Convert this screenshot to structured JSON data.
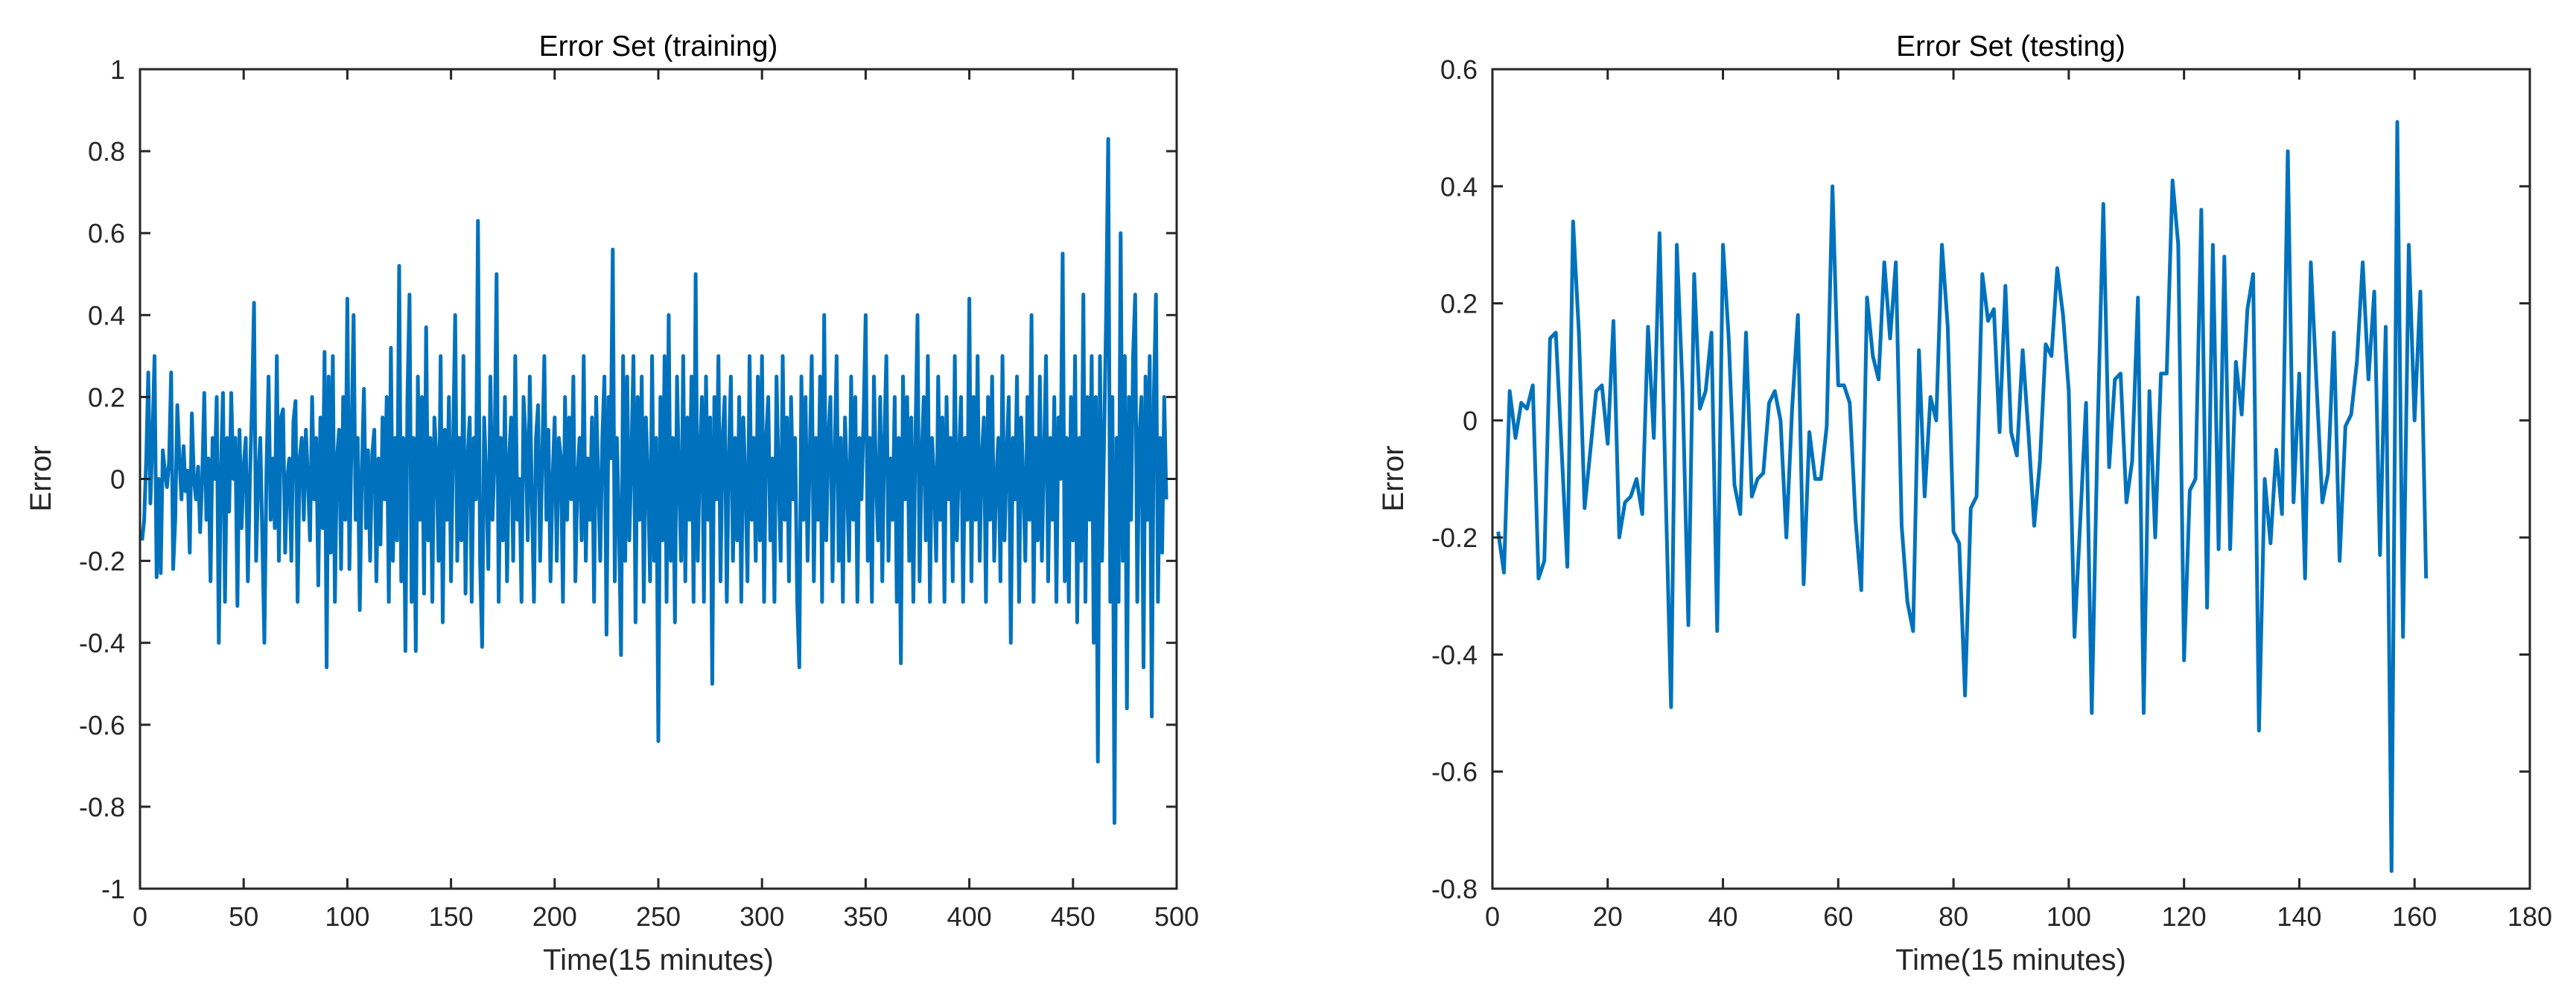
{
  "chart_data": [
    {
      "type": "line",
      "title": "Error Set (training)",
      "xlabel": "Time(15 minutes)",
      "ylabel": "Error",
      "xlim": [
        0,
        500
      ],
      "ylim": [
        -1,
        1
      ],
      "xticks": [
        "0",
        "50",
        "100",
        "150",
        "200",
        "250",
        "300",
        "350",
        "400",
        "450",
        "500"
      ],
      "yticks": [
        "-1",
        "-0.8",
        "-0.6",
        "-0.4",
        "-0.2",
        "0",
        "0.2",
        "0.4",
        "0.6",
        "0.8",
        "1"
      ],
      "grid": false,
      "color": "#0072BD",
      "x_start": 1,
      "x_step": 1,
      "values": [
        -0.15,
        -0.1,
        0.05,
        0.26,
        -0.06,
        0.1,
        0.3,
        -0.24,
        0.0,
        -0.23,
        0.07,
        0.02,
        -0.02,
        0.04,
        0.26,
        -0.22,
        -0.1,
        0.18,
        0.05,
        -0.05,
        0.08,
        -0.03,
        0.02,
        -0.18,
        0.16,
        0.0,
        -0.05,
        0.03,
        -0.13,
        0.0,
        0.21,
        -0.1,
        0.05,
        -0.25,
        0.1,
        0.0,
        0.2,
        -0.4,
        0.02,
        0.21,
        -0.3,
        0.1,
        -0.08,
        0.21,
        0.0,
        0.1,
        -0.31,
        0.12,
        -0.12,
        0.03,
        0.1,
        -0.25,
        0.0,
        0.18,
        0.43,
        -0.2,
        0.0,
        0.1,
        -0.15,
        -0.4,
        0.02,
        0.25,
        -0.1,
        0.05,
        -0.12,
        0.3,
        -0.2,
        0.15,
        0.17,
        -0.18,
        0.0,
        0.05,
        -0.2,
        0.14,
        0.19,
        -0.3,
        0.05,
        0.1,
        -0.1,
        0.12,
        0.0,
        -0.15,
        0.2,
        -0.05,
        0.1,
        -0.26,
        0.15,
        -0.12,
        0.31,
        -0.46,
        0.25,
        -0.18,
        0.3,
        -0.3,
        0.05,
        0.12,
        -0.22,
        0.2,
        -0.1,
        0.44,
        -0.22,
        0.1,
        0.4,
        -0.1,
        0.1,
        -0.32,
        0.02,
        0.22,
        -0.12,
        0.07,
        -0.2,
        0.06,
        0.12,
        -0.25,
        0.05,
        -0.16,
        0.15,
        -0.05,
        0.2,
        -0.3,
        0.32,
        -0.2,
        0.1,
        -0.15,
        0.52,
        -0.25,
        0.1,
        -0.42,
        0.2,
        0.45,
        -0.3,
        0.1,
        -0.42,
        0.25,
        -0.1,
        0.2,
        -0.28,
        0.37,
        -0.15,
        0.1,
        -0.3,
        0.15,
        0.05,
        -0.2,
        0.3,
        -0.35,
        0.12,
        -0.1,
        0.2,
        -0.25,
        0.08,
        0.4,
        -0.2,
        0.1,
        -0.15,
        0.3,
        -0.28,
        0.05,
        0.15,
        -0.3,
        0.1,
        -0.05,
        0.63,
        -0.2,
        -0.41,
        0.15,
        0.0,
        -0.22,
        0.25,
        -0.1,
        0.05,
        0.5,
        -0.3,
        0.1,
        -0.15,
        0.2,
        -0.25,
        0.05,
        0.15,
        -0.2,
        0.3,
        -0.1,
        0.0,
        -0.3,
        0.2,
        0.1,
        -0.15,
        0.25,
        -0.05,
        -0.3,
        0.1,
        0.18,
        -0.2,
        0.05,
        0.3,
        -0.1,
        0.12,
        -0.25,
        0.0,
        0.15,
        -0.2,
        0.1,
        0.05,
        -0.3,
        0.2,
        -0.1,
        0.15,
        -0.05,
        0.25,
        -0.25,
        0.0,
        0.1,
        -0.15,
        0.3,
        -0.2,
        0.05,
        -0.1,
        0.15,
        -0.3,
        0.2,
        0.0,
        -0.2,
        0.1,
        0.25,
        -0.38,
        0.2,
        0.05,
        0.56,
        -0.25,
        0.1,
        -0.1,
        -0.43,
        0.3,
        -0.2,
        0.25,
        -0.15,
        0.05,
        0.3,
        -0.35,
        0.2,
        -0.1,
        0.25,
        -0.3,
        0.15,
        0.0,
        -0.25,
        0.3,
        -0.2,
        0.1,
        -0.64,
        0.2,
        -0.15,
        0.3,
        -0.3,
        0.4,
        -0.2,
        0.1,
        -0.35,
        0.25,
        0.0,
        -0.2,
        0.3,
        -0.25,
        0.15,
        -0.1,
        0.25,
        -0.3,
        0.5,
        -0.2,
        0.05,
        0.2,
        -0.3,
        0.25,
        -0.1,
        0.15,
        -0.5,
        0.2,
        -0.05,
        0.3,
        -0.25,
        0.1,
        0.2,
        -0.3,
        0.05,
        0.25,
        -0.2,
        0.1,
        -0.15,
        0.2,
        -0.3,
        0.15,
        0.0,
        -0.25,
        0.3,
        -0.1,
        0.1,
        -0.2,
        0.25,
        -0.15,
        0.3,
        -0.3,
        0.1,
        0.2,
        -0.15,
        0.05,
        -0.3,
        0.25,
        0.0,
        -0.2,
        0.3,
        -0.1,
        0.15,
        -0.25,
        0.2,
        -0.05,
        0.1,
        -0.3,
        -0.46,
        0.25,
        -0.1,
        0.2,
        -0.2,
        0.05,
        0.3,
        -0.25,
        0.1,
        -0.1,
        0.25,
        -0.3,
        0.4,
        -0.15,
        0.1,
        0.2,
        -0.25,
        0.05,
        0.3,
        -0.2,
        0.1,
        -0.3,
        0.15,
        0.0,
        -0.2,
        0.25,
        -0.1,
        0.2,
        -0.3,
        0.1,
        -0.05,
        0.15,
        0.4,
        -0.2,
        0.1,
        -0.3,
        0.25,
        0.0,
        -0.15,
        0.2,
        -0.25,
        0.1,
        0.3,
        -0.2,
        0.05,
        -0.1,
        0.2,
        -0.3,
        0.1,
        -0.45,
        0.25,
        -0.05,
        0.2,
        -0.2,
        0.15,
        -0.3,
        0.1,
        0.4,
        -0.25,
        0.05,
        0.2,
        -0.15,
        0.3,
        -0.3,
        0.1,
        0.0,
        -0.2,
        0.25,
        -0.1,
        0.15,
        -0.3,
        0.2,
        -0.05,
        0.1,
        -0.25,
        0.3,
        -0.15,
        0.05,
        0.2,
        -0.3,
        0.1,
        -0.1,
        0.44,
        -0.25,
        0.2,
        -0.1,
        0.3,
        -0.2,
        0.05,
        0.15,
        -0.3,
        0.2,
        -0.1,
        0.25,
        -0.2,
        0.0,
        0.1,
        -0.25,
        0.3,
        -0.15,
        0.05,
        0.2,
        -0.4,
        0.1,
        -0.05,
        0.25,
        -0.3,
        0.15,
        0.0,
        -0.2,
        0.2,
        -0.1,
        0.4,
        -0.3,
        0.1,
        -0.15,
        0.25,
        -0.2,
        0.05,
        0.3,
        -0.25,
        0.1,
        -0.1,
        0.2,
        -0.3,
        0.15,
        0.0,
        0.55,
        -0.25,
        0.1,
        -0.3,
        0.2,
        -0.15,
        0.3,
        -0.35,
        0.1,
        -0.2,
        0.45,
        -0.3,
        0.2,
        -0.1,
        0.3,
        -0.4,
        0.2,
        -0.69,
        0.3,
        -0.2,
        0.1,
        0.4,
        0.83,
        -0.3,
        0.2,
        -0.84,
        0.1,
        -0.3,
        0.6,
        -0.2,
        0.3,
        -0.56,
        0.2,
        -0.1,
        0.3,
        0.45,
        -0.3,
        0.1,
        0.2,
        -0.46,
        0.25,
        -0.1,
        0.3,
        -0.58,
        0.2,
        0.45,
        -0.3,
        0.1,
        -0.18,
        0.2,
        -0.05
      ]
    },
    {
      "type": "line",
      "title": "Error Set (testing)",
      "xlabel": "Time(15 minutes)",
      "ylabel": "Error",
      "xlim": [
        0,
        180
      ],
      "ylim": [
        -0.8,
        0.6
      ],
      "xticks": [
        "0",
        "20",
        "40",
        "60",
        "80",
        "100",
        "120",
        "140",
        "160",
        "180"
      ],
      "yticks": [
        "-0.8",
        "-0.6",
        "-0.4",
        "-0.2",
        "0",
        "0.2",
        "0.4",
        "0.6"
      ],
      "grid": false,
      "color": "#0072BD",
      "x_start": 1,
      "x_step": 1,
      "values": [
        -0.19,
        -0.26,
        0.05,
        -0.03,
        0.03,
        0.02,
        0.06,
        -0.27,
        -0.24,
        0.14,
        0.15,
        -0.05,
        -0.25,
        0.34,
        0.15,
        -0.15,
        -0.05,
        0.05,
        0.06,
        -0.04,
        0.17,
        -0.2,
        -0.14,
        -0.13,
        -0.1,
        -0.16,
        0.16,
        -0.03,
        0.32,
        -0.1,
        -0.49,
        0.3,
        0.05,
        -0.35,
        0.25,
        0.02,
        0.05,
        0.15,
        -0.36,
        0.3,
        0.14,
        -0.11,
        -0.16,
        0.15,
        -0.13,
        -0.1,
        -0.09,
        0.03,
        0.05,
        0.0,
        -0.2,
        0.02,
        0.18,
        -0.28,
        -0.02,
        -0.1,
        -0.1,
        -0.01,
        0.4,
        0.06,
        0.06,
        0.03,
        -0.17,
        -0.29,
        0.21,
        0.11,
        0.07,
        0.27,
        0.14,
        0.27,
        -0.18,
        -0.31,
        -0.36,
        0.12,
        -0.13,
        0.04,
        0.0,
        0.3,
        0.16,
        -0.19,
        -0.21,
        -0.47,
        -0.15,
        -0.13,
        0.25,
        0.17,
        0.19,
        -0.02,
        0.23,
        -0.02,
        -0.06,
        0.12,
        -0.02,
        -0.18,
        -0.07,
        0.13,
        0.11,
        0.26,
        0.18,
        0.05,
        -0.37,
        -0.17,
        0.03,
        -0.5,
        -0.02,
        0.37,
        -0.08,
        0.07,
        0.08,
        -0.14,
        -0.07,
        0.21,
        -0.5,
        0.05,
        -0.2,
        0.08,
        0.08,
        0.41,
        0.3,
        -0.41,
        -0.12,
        -0.1,
        0.36,
        -0.32,
        0.3,
        -0.22,
        0.28,
        -0.22,
        0.1,
        0.01,
        0.19,
        0.25,
        -0.53,
        -0.1,
        -0.21,
        -0.05,
        -0.16,
        0.46,
        -0.14,
        0.08,
        -0.27,
        0.27,
        0.06,
        -0.14,
        -0.09,
        0.15,
        -0.24,
        -0.01,
        0.01,
        0.1,
        0.27,
        0.07,
        0.22,
        -0.23,
        0.16,
        -0.77,
        0.51,
        -0.37,
        0.3,
        0.0,
        0.22,
        -0.27
      ]
    }
  ]
}
